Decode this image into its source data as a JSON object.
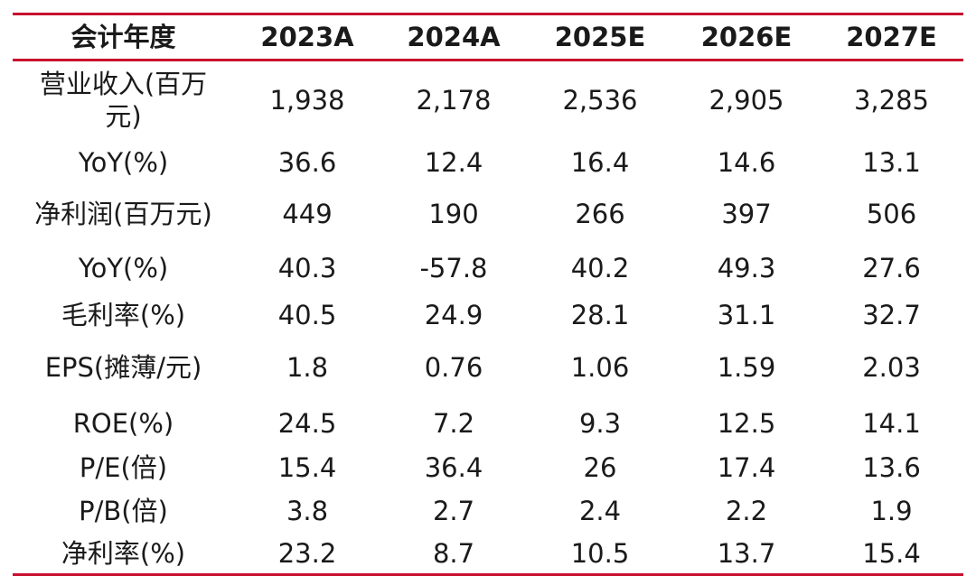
{
  "table": {
    "headers": [
      "会计年度",
      "2023A",
      "2024A",
      "2025E",
      "2026E",
      "2027E"
    ],
    "rows": [
      {
        "label": "营业收入(百万元)",
        "values": [
          "1,938",
          "2,178",
          "2,536",
          "2,905",
          "3,285"
        ]
      },
      {
        "label": "YoY(%)",
        "values": [
          "36.6",
          "12.4",
          "16.4",
          "14.6",
          "13.1"
        ]
      },
      {
        "label": "净利润(百万元)",
        "values": [
          "449",
          "190",
          "266",
          "397",
          "506"
        ]
      },
      {
        "label": "YoY(%)",
        "values": [
          "40.3",
          "-57.8",
          "40.2",
          "49.3",
          "27.6"
        ]
      },
      {
        "label": "毛利率(%)",
        "values": [
          "40.5",
          "24.9",
          "28.1",
          "31.1",
          "32.7"
        ]
      },
      {
        "label": "EPS(摊薄/元)",
        "values": [
          "1.8",
          "0.76",
          "1.06",
          "1.59",
          "2.03"
        ]
      },
      {
        "label": "ROE(%)",
        "values": [
          "24.5",
          "7.2",
          "9.3",
          "12.5",
          "14.1"
        ]
      },
      {
        "label": "P/E(倍)",
        "values": [
          "15.4",
          "36.4",
          "26",
          "17.4",
          "13.6"
        ]
      },
      {
        "label": "P/B(倍)",
        "values": [
          "3.8",
          "2.7",
          "2.4",
          "2.2",
          "1.9"
        ]
      },
      {
        "label": "净利率(%)",
        "values": [
          "23.2",
          "8.7",
          "10.5",
          "13.7",
          "15.4"
        ]
      }
    ]
  },
  "colors": {
    "rule": "#c8102e",
    "text": "#1a1a1a"
  }
}
